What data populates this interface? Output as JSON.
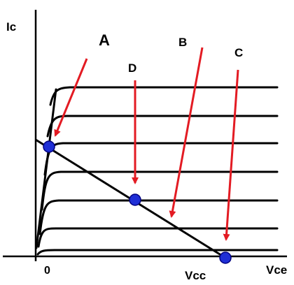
{
  "axes": {
    "y_label": "Ic",
    "x_label": "Vce",
    "origin_label": "0",
    "vcc_label": "Vcc"
  },
  "points": {
    "A": "A",
    "B": "B",
    "C": "C",
    "D": "D"
  },
  "colors": {
    "curves": "#000000",
    "arrows": "#e31b23",
    "points": "#1f2fd6",
    "point_outline": "#000080"
  },
  "curve_count": 7
}
